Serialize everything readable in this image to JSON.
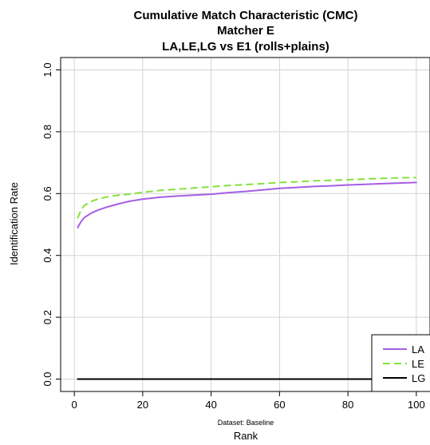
{
  "chart_data": {
    "type": "line",
    "title": "Cumulative Match Characteristic (CMC)",
    "subtitle": "Matcher E",
    "subtitle2": "LA,LE,LG vs E1 (rolls+plains)",
    "xlabel": "Rank",
    "x_sublabel": "Dataset: Baseline",
    "ylabel": "Identification Rate",
    "xlim": [
      0,
      100
    ],
    "ylim": [
      0,
      1.0
    ],
    "xticks": [
      "0",
      "20",
      "40",
      "60",
      "80",
      "100"
    ],
    "yticks": [
      "0.0",
      "0.2",
      "0.4",
      "0.6",
      "0.8",
      "1.0"
    ],
    "grid": true,
    "legend_position": "bottom-right",
    "x": [
      1,
      2,
      3,
      5,
      7,
      10,
      13,
      16,
      20,
      25,
      30,
      35,
      40,
      45,
      50,
      55,
      60,
      65,
      70,
      75,
      80,
      85,
      90,
      95,
      100
    ],
    "series": [
      {
        "name": "LA",
        "color": "#a45ee5",
        "dash": "solid",
        "values": [
          0.49,
          0.51,
          0.523,
          0.537,
          0.547,
          0.558,
          0.567,
          0.575,
          0.582,
          0.588,
          0.592,
          0.595,
          0.598,
          0.603,
          0.607,
          0.612,
          0.617,
          0.62,
          0.623,
          0.625,
          0.628,
          0.63,
          0.632,
          0.634,
          0.636
        ]
      },
      {
        "name": "LE",
        "color": "#84e23c",
        "dash": "dashed",
        "values": [
          0.52,
          0.548,
          0.562,
          0.575,
          0.583,
          0.59,
          0.595,
          0.598,
          0.604,
          0.61,
          0.614,
          0.618,
          0.622,
          0.626,
          0.629,
          0.632,
          0.636,
          0.638,
          0.641,
          0.643,
          0.645,
          0.647,
          0.649,
          0.651,
          0.652
        ]
      },
      {
        "name": "LG",
        "color": "#000000",
        "dash": "solid",
        "values": [
          0.0,
          0.0,
          0.0,
          0.0,
          0.0,
          0.0,
          0.0,
          0.0,
          0.0,
          0.0,
          0.0,
          0.0,
          0.0,
          0.0,
          0.0,
          0.0,
          0.0,
          0.0,
          0.0,
          0.0,
          0.0,
          0.0,
          0.0,
          0.0,
          0.0
        ]
      }
    ]
  }
}
